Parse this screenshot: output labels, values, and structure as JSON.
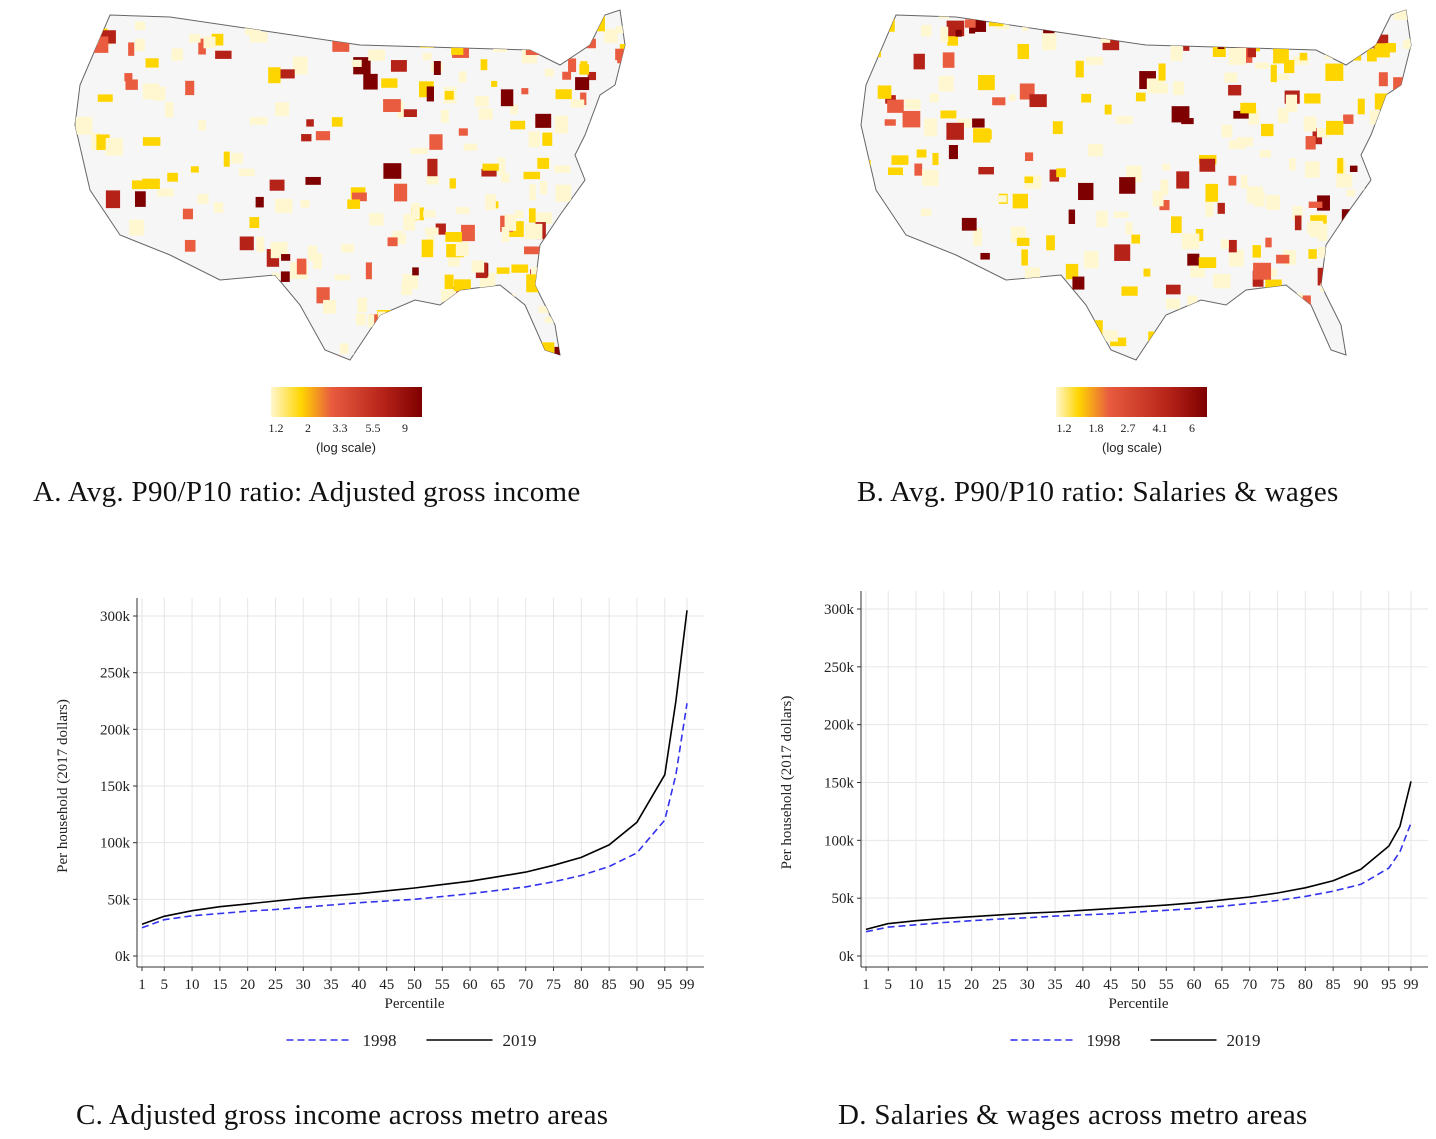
{
  "panels": {
    "a": {
      "caption": "A.  Avg. P90/P10 ratio: Adjusted gross income",
      "legend_ticks": [
        "1.2",
        "2",
        "3.3",
        "5.5",
        "9"
      ],
      "legend_note": "(log scale)"
    },
    "b": {
      "caption": "B.  Avg. P90/P10 ratio: Salaries & wages",
      "legend_ticks": [
        "1.2",
        "1.8",
        "2.7",
        "4.1",
        "6"
      ],
      "legend_note": "(log scale)"
    },
    "c": {
      "caption": "C.  Adjusted gross income across metro areas"
    },
    "d": {
      "caption": "D.  Salaries & wages across metro areas"
    }
  },
  "colors": {
    "scale": [
      "#fff7cf",
      "#ffd500",
      "#e95c40",
      "#b52218",
      "#7e0000"
    ],
    "series_1998": "#3333ee",
    "series_2019": "#000000"
  },
  "chart_data": [
    {
      "type": "line",
      "xlabel": "Percentile",
      "ylabel": "Per household (2017 dollars)",
      "ylim": [
        0,
        300000
      ],
      "yticks": [
        "0k",
        "50k",
        "100k",
        "150k",
        "200k",
        "250k",
        "300k"
      ],
      "xticks": [
        "1",
        "5",
        "10",
        "15",
        "20",
        "25",
        "30",
        "35",
        "40",
        "45",
        "50",
        "55",
        "60",
        "65",
        "70",
        "75",
        "80",
        "85",
        "90",
        "95",
        "99"
      ],
      "grid": true,
      "legend": "bottom",
      "x": [
        1,
        5,
        10,
        15,
        20,
        25,
        30,
        35,
        40,
        45,
        50,
        55,
        60,
        65,
        70,
        75,
        80,
        85,
        90,
        95,
        97,
        99
      ],
      "series": [
        {
          "name": "1998",
          "style": "dashed",
          "values": [
            25000,
            32000,
            35500,
            37500,
            39500,
            41000,
            43000,
            45000,
            47000,
            48500,
            50000,
            52500,
            55000,
            58000,
            61000,
            65500,
            71000,
            79000,
            91000,
            120000,
            160000,
            223000
          ]
        },
        {
          "name": "2019",
          "style": "solid",
          "values": [
            28000,
            35000,
            40000,
            43500,
            46000,
            48500,
            51000,
            53000,
            55000,
            57500,
            60000,
            63000,
            66000,
            70000,
            74000,
            80000,
            87000,
            98000,
            118000,
            160000,
            225000,
            305000
          ]
        }
      ]
    },
    {
      "type": "line",
      "xlabel": "Percentile",
      "ylabel": "Per household (2017 dollars)",
      "ylim": [
        0,
        300000
      ],
      "yticks": [
        "0k",
        "50k",
        "100k",
        "150k",
        "200k",
        "250k",
        "300k"
      ],
      "xticks": [
        "1",
        "5",
        "10",
        "15",
        "20",
        "25",
        "30",
        "35",
        "40",
        "45",
        "50",
        "55",
        "60",
        "65",
        "70",
        "75",
        "80",
        "85",
        "90",
        "95",
        "99"
      ],
      "grid": true,
      "legend": "bottom",
      "x": [
        1,
        5,
        10,
        15,
        20,
        25,
        30,
        35,
        40,
        45,
        50,
        55,
        60,
        65,
        70,
        75,
        80,
        85,
        90,
        95,
        97,
        99
      ],
      "series": [
        {
          "name": "1998",
          "style": "dashed",
          "values": [
            21000,
            25000,
            27000,
            29000,
            30500,
            32000,
            33000,
            34500,
            35500,
            36500,
            38000,
            39500,
            41000,
            43000,
            45500,
            48000,
            51500,
            56000,
            62000,
            76000,
            90000,
            115000
          ]
        },
        {
          "name": "2019",
          "style": "solid",
          "values": [
            23000,
            28000,
            30500,
            32500,
            34000,
            35500,
            37000,
            38000,
            39500,
            41000,
            42500,
            44000,
            46000,
            48500,
            51000,
            54500,
            59000,
            65000,
            75000,
            95000,
            112000,
            151000
          ]
        }
      ]
    }
  ]
}
